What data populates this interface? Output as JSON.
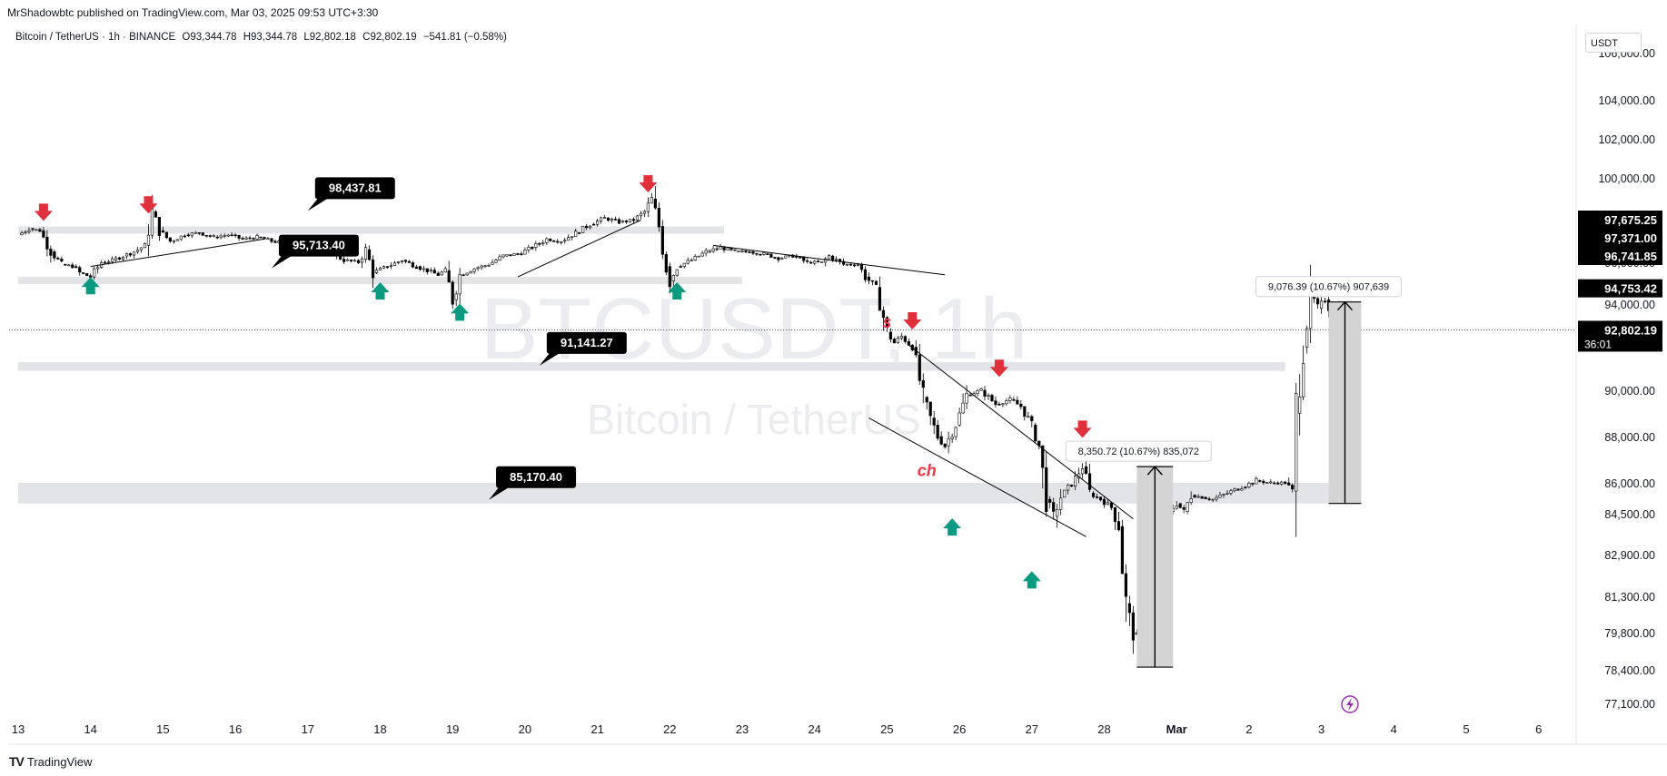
{
  "header": {
    "published": "MrShadowbtc published on TradingView.com, Mar 03, 2025 09:53 UTC+3:30",
    "symbol": "Bitcoin / TetherUS · 1h · BINANCE",
    "ohlc": {
      "open": "O93,344.78",
      "high": "H93,344.78",
      "low": "L92,802.18",
      "close": "C92,802.19",
      "change": "−541.81 (−0.58%)"
    }
  },
  "currency_label": "USDT",
  "footer": {
    "brand": "TradingView",
    "logo": "TV"
  },
  "watermark": {
    "ticker": "BTCUSDT, 1h",
    "name": "Bitcoin / TetherUS"
  },
  "colors": {
    "up_arrow": "#089981",
    "down_arrow": "#e0303b",
    "label_bg": "#000000",
    "zone": "#e3e4e8",
    "measure_box": "#d4d4d4",
    "text_red": "#f23645"
  },
  "chart_data": {
    "type": "candlestick",
    "price_axis": {
      "ticks": [
        "106,000.00",
        "104,000.00",
        "102,000.00",
        "100,000.00",
        "96,000.00",
        "94,000.00",
        "90,000.00",
        "88,000.00",
        "86,000.00",
        "84,500.00",
        "82,900.00",
        "81,300.00",
        "79,800.00",
        "78,400.00",
        "77,100.00"
      ],
      "tick_values": [
        106000,
        104000,
        102000,
        100000,
        96000,
        94000,
        90000,
        88000,
        86000,
        84500,
        82900,
        81300,
        79800,
        78400,
        77100
      ]
    },
    "price_tags": [
      {
        "label": "97,675.25",
        "value": 97675.25
      },
      {
        "label": "97,371.00",
        "value": 97371.0
      },
      {
        "label": "96,741.85",
        "value": 96741.85
      },
      {
        "label": "94,753.42",
        "value": 94753.42
      },
      {
        "label": "92,802.19",
        "value": 92802.19,
        "countdown": "36:01"
      }
    ],
    "time_axis": [
      "13",
      "14",
      "15",
      "16",
      "17",
      "18",
      "19",
      "20",
      "21",
      "22",
      "23",
      "24",
      "25",
      "26",
      "27",
      "28",
      "Mar",
      "2",
      "3",
      "4",
      "5",
      "6"
    ],
    "path": [
      [
        13.0,
        97300
      ],
      [
        13.15,
        97600
      ],
      [
        13.3,
        97500
      ],
      [
        13.45,
        96500
      ],
      [
        13.6,
        95900
      ],
      [
        13.75,
        95800
      ],
      [
        13.85,
        95500
      ],
      [
        14.0,
        95300
      ],
      [
        14.15,
        96000
      ],
      [
        14.3,
        96100
      ],
      [
        14.45,
        96300
      ],
      [
        14.6,
        96500
      ],
      [
        14.75,
        96800
      ],
      [
        14.85,
        98400
      ],
      [
        14.95,
        97500
      ],
      [
        15.1,
        97000
      ],
      [
        15.3,
        97300
      ],
      [
        15.5,
        97400
      ],
      [
        15.7,
        97200
      ],
      [
        15.9,
        97300
      ],
      [
        16.1,
        97100
      ],
      [
        16.3,
        97200
      ],
      [
        16.5,
        97000
      ],
      [
        16.7,
        96900
      ],
      [
        16.9,
        96500
      ],
      [
        17.1,
        96400
      ],
      [
        17.3,
        96500
      ],
      [
        17.5,
        96100
      ],
      [
        17.7,
        96000
      ],
      [
        17.8,
        96600
      ],
      [
        17.9,
        95500
      ],
      [
        18.1,
        95800
      ],
      [
        18.3,
        96100
      ],
      [
        18.5,
        95800
      ],
      [
        18.65,
        95600
      ],
      [
        18.8,
        95400
      ],
      [
        18.9,
        95600
      ],
      [
        19.0,
        94200
      ],
      [
        19.1,
        95400
      ],
      [
        19.3,
        95700
      ],
      [
        19.5,
        95900
      ],
      [
        19.7,
        96300
      ],
      [
        19.9,
        96400
      ],
      [
        20.1,
        96700
      ],
      [
        20.3,
        97100
      ],
      [
        20.5,
        97000
      ],
      [
        20.7,
        97400
      ],
      [
        20.9,
        97800
      ],
      [
        21.1,
        98100
      ],
      [
        21.3,
        97900
      ],
      [
        21.5,
        98000
      ],
      [
        21.65,
        98400
      ],
      [
        21.75,
        99000
      ],
      [
        21.85,
        97700
      ],
      [
        21.95,
        95800
      ],
      [
        22.0,
        95100
      ],
      [
        22.1,
        95800
      ],
      [
        22.3,
        96100
      ],
      [
        22.5,
        96500
      ],
      [
        22.7,
        96700
      ],
      [
        22.9,
        96500
      ],
      [
        23.1,
        96500
      ],
      [
        23.3,
        96400
      ],
      [
        23.5,
        96200
      ],
      [
        23.7,
        96300
      ],
      [
        23.9,
        96000
      ],
      [
        24.1,
        96000
      ],
      [
        24.2,
        96300
      ],
      [
        24.4,
        95900
      ],
      [
        24.6,
        95900
      ],
      [
        24.7,
        95300
      ],
      [
        24.85,
        94800
      ],
      [
        25.0,
        92700
      ],
      [
        25.1,
        92200
      ],
      [
        25.2,
        92500
      ],
      [
        25.35,
        92000
      ],
      [
        25.5,
        89700
      ],
      [
        25.6,
        88800
      ],
      [
        25.7,
        88000
      ],
      [
        25.8,
        87600
      ],
      [
        25.95,
        88500
      ],
      [
        26.1,
        89800
      ],
      [
        26.3,
        90000
      ],
      [
        26.5,
        89400
      ],
      [
        26.7,
        89600
      ],
      [
        26.85,
        89300
      ],
      [
        27.0,
        88500
      ],
      [
        27.1,
        87600
      ],
      [
        27.2,
        85200
      ],
      [
        27.3,
        84400
      ],
      [
        27.4,
        85300
      ],
      [
        27.6,
        86200
      ],
      [
        27.7,
        86700
      ],
      [
        27.8,
        85500
      ],
      [
        27.95,
        85200
      ],
      [
        28.1,
        84800
      ],
      [
        28.2,
        84000
      ],
      [
        28.3,
        81000
      ],
      [
        28.4,
        79800
      ],
      [
        28.5,
        79300
      ],
      [
        28.6,
        80200
      ],
      [
        28.7,
        81500
      ],
      [
        28.8,
        84300
      ],
      [
        28.9,
        84600
      ],
      [
        29.0,
        85000
      ],
      [
        29.1,
        84600
      ],
      [
        29.2,
        85400
      ],
      [
        29.35,
        85300
      ],
      [
        29.5,
        85200
      ],
      [
        29.7,
        85500
      ],
      [
        29.9,
        85800
      ],
      [
        30.1,
        86100
      ],
      [
        30.3,
        86000
      ],
      [
        30.5,
        86000
      ],
      [
        30.6,
        85600
      ],
      [
        30.65,
        89000
      ],
      [
        30.75,
        92000
      ],
      [
        30.85,
        94500
      ],
      [
        30.95,
        93800
      ],
      [
        31.05,
        94200
      ],
      [
        31.2,
        93200
      ],
      [
        31.35,
        92800
      ]
    ],
    "zones": [
      {
        "from": 13.0,
        "to": 22.75,
        "top": 97700,
        "bottom": 97500
      },
      {
        "from": 13.0,
        "to": 23.0,
        "top": 95300,
        "bottom": 95000
      },
      {
        "from": 13.0,
        "to": 30.5,
        "top": 91300,
        "bottom": 90900
      },
      {
        "from": 13.0,
        "to": 31.2,
        "top": 86000,
        "bottom": 85000
      }
    ],
    "trend_lines": [
      {
        "x1": 14.0,
        "y1": 95800,
        "x2": 16.4,
        "y2": 97100
      },
      {
        "x1": 19.9,
        "y1": 95300,
        "x2": 21.6,
        "y2": 98000
      },
      {
        "x1": 22.6,
        "y1": 96800,
        "x2": 25.8,
        "y2": 95400
      },
      {
        "x1": 25.3,
        "y1": 92100,
        "x2": 28.4,
        "y2": 84300
      },
      {
        "x1": 24.75,
        "y1": 88800,
        "x2": 27.75,
        "y2": 83600
      }
    ],
    "price_labels": [
      {
        "text": "98,437.81",
        "x": 17.0,
        "value": 98437.81
      },
      {
        "text": "95,713.40",
        "x": 16.5,
        "value": 95713.4
      },
      {
        "text": "91,141.27",
        "x": 20.2,
        "value": 91141.27
      },
      {
        "text": "85,170.40",
        "x": 19.5,
        "value": 85170.4
      }
    ],
    "arrows": [
      {
        "dir": "down",
        "x": 13.35,
        "value": 98350
      },
      {
        "dir": "down",
        "x": 14.8,
        "value": 98700
      },
      {
        "dir": "down",
        "x": 21.7,
        "value": 99700
      },
      {
        "dir": "down",
        "x": 25.35,
        "value": 93200
      },
      {
        "dir": "down",
        "x": 26.55,
        "value": 91000
      },
      {
        "dir": "down",
        "x": 27.7,
        "value": 88300
      },
      {
        "dir": "up",
        "x": 14.0,
        "value": 94900
      },
      {
        "dir": "up",
        "x": 18.0,
        "value": 94650
      },
      {
        "dir": "up",
        "x": 19.1,
        "value": 93650
      },
      {
        "dir": "up",
        "x": 22.1,
        "value": 94650
      },
      {
        "dir": "up",
        "x": 25.9,
        "value": 84000
      },
      {
        "dir": "up",
        "x": 27.0,
        "value": 81950
      }
    ],
    "measures": [
      {
        "from": 28.45,
        "to": 28.95,
        "top": 86700,
        "bottom": 78500,
        "label": "8,350.72 (10.67%) 835,072"
      },
      {
        "from": 31.1,
        "to": 31.55,
        "top": 94100,
        "bottom": 85000,
        "label": "9,076.39 (10.67%) 907,639"
      }
    ],
    "annotations": [
      {
        "text": "s",
        "x": 25.0,
        "value": 92900
      },
      {
        "text": "ch",
        "x": 25.55,
        "value": 86300
      }
    ],
    "reference_line": {
      "value": 92802.19
    }
  }
}
